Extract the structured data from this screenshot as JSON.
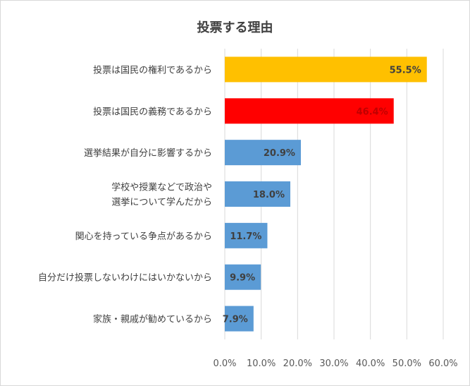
{
  "chart_data": {
    "type": "bar",
    "orientation": "horizontal",
    "title": "投票する理由",
    "categories": [
      "投票は国民の権利であるから",
      "投票は国民の義務であるから",
      "選挙結果が自分に影響するから",
      "学校や授業などで政治や\n選挙について学んだから",
      "関心を持っている争点があるから",
      "自分だけ投票しないわけにはいかないから",
      "家族・親戚が勧めているから"
    ],
    "values": [
      55.5,
      46.4,
      20.9,
      18.0,
      11.7,
      9.9,
      7.9
    ],
    "data_labels": [
      "55.5%",
      "46.4%",
      "20.9%",
      "18.0%",
      "11.7%",
      "9.9%",
      "7.9%"
    ],
    "bar_colors": [
      "#FFC000",
      "#FF0000",
      "#5B9BD5",
      "#5B9BD5",
      "#5B9BD5",
      "#5B9BD5",
      "#5B9BD5"
    ],
    "label_colors": [
      "#404040",
      "#C00000",
      "#404040",
      "#404040",
      "#404040",
      "#404040",
      "#404040"
    ],
    "xlim": [
      0,
      60
    ],
    "xticks": [
      0,
      10,
      20,
      30,
      40,
      50,
      60
    ],
    "xtick_labels": [
      "0.0%",
      "10.0%",
      "20.0%",
      "30.0%",
      "40.0%",
      "50.0%",
      "60.0%"
    ],
    "grid": true,
    "xlabel": "",
    "ylabel": ""
  }
}
